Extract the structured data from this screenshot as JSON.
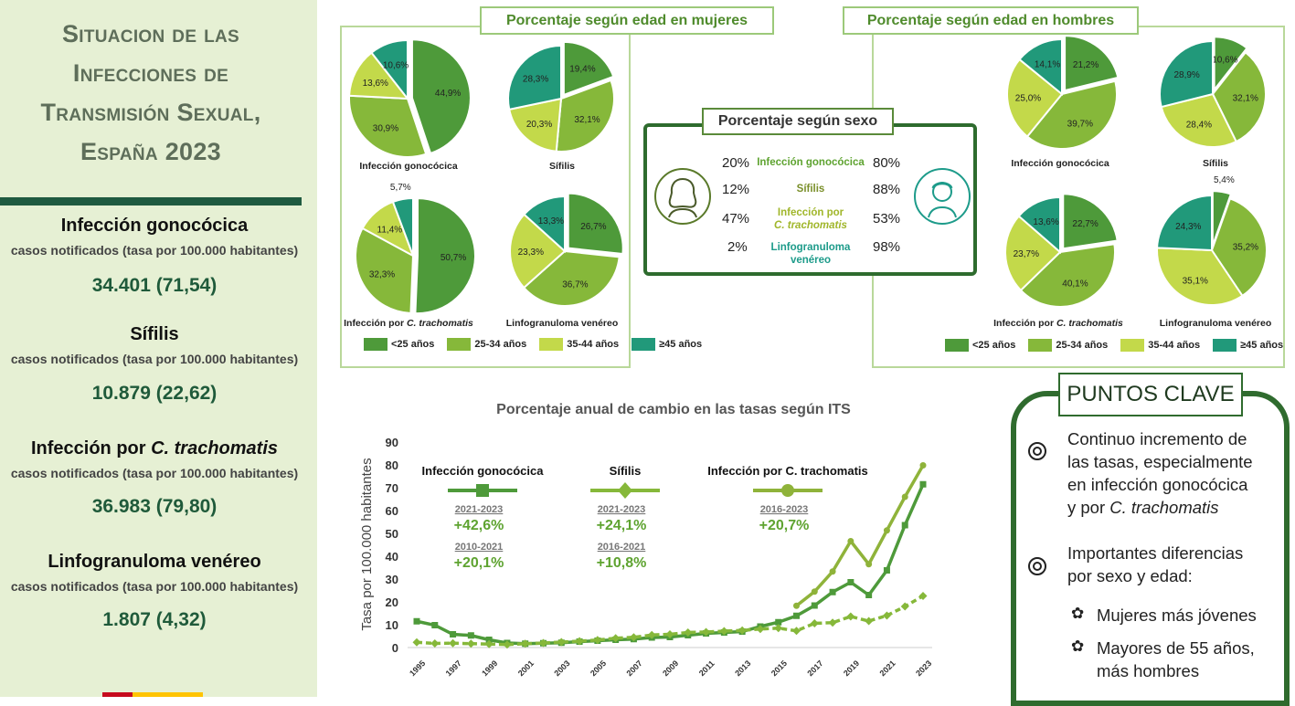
{
  "sidebar": {
    "title_lines": [
      "Situacion de las",
      "Infecciones de",
      "Transmisión Sexual,",
      "España 2023"
    ],
    "subtitle": "casos notificados (tasa por 100.000 habitantes)",
    "stats": [
      {
        "name": "Infección gonocócica",
        "value": "34.401 (71,54)"
      },
      {
        "name": "Sífilis",
        "value": "10.879 (22,62)"
      },
      {
        "name_prefix": "Infección por ",
        "name_italic": "C. trachomatis",
        "value": "36.983 (79,80)"
      },
      {
        "name": "Linfogranuloma venéreo",
        "value": "1.807 (4,32)"
      }
    ]
  },
  "age_women": {
    "title": "Porcentaje según edad en mujeres",
    "pies": [
      {
        "label": "Infección gonocócica",
        "values": [
          44.9,
          30.9,
          13.6,
          10.6
        ],
        "labels": [
          "44,9%",
          "30,9%",
          "13,6%",
          "10,6%"
        ]
      },
      {
        "label": "Sífilis",
        "values": [
          19.4,
          32.1,
          20.3,
          28.3
        ],
        "labels": [
          "19,4%",
          "32,1%",
          "20,3%",
          "28,3%"
        ]
      },
      {
        "label": "Infección por C. trachomatis",
        "values": [
          50.7,
          32.3,
          11.4,
          5.7
        ],
        "labels": [
          "50,7%",
          "32,3%",
          "11,4%",
          "5,7%"
        ]
      },
      {
        "label": "Linfogranuloma venéreo",
        "values": [
          26.7,
          36.7,
          23.3,
          13.3
        ],
        "labels": [
          "26,7%",
          "36,7%",
          "23,3%",
          "13,3%"
        ]
      }
    ]
  },
  "age_men": {
    "title": "Porcentaje según edad en hombres",
    "pies": [
      {
        "label": "Infección gonocócica",
        "values": [
          21.2,
          39.7,
          25.0,
          14.1
        ],
        "labels": [
          "21,2%",
          "39,7%",
          "25,0%",
          "14,1%"
        ]
      },
      {
        "label": "Sífilis",
        "values": [
          10.6,
          32.1,
          28.4,
          28.9
        ],
        "labels": [
          "10,6%",
          "32,1%",
          "28,4%",
          "28,9%"
        ]
      },
      {
        "label": "Infección por C. trachomatis",
        "values": [
          22.7,
          40.1,
          23.7,
          13.6
        ],
        "labels": [
          "22,7%",
          "40,1%",
          "23,7%",
          "13,6%"
        ]
      },
      {
        "label": "Linfogranuloma venéreo",
        "values": [
          5.4,
          35.2,
          35.1,
          24.3
        ],
        "labels": [
          "5,4%",
          "35,2%",
          "35,1%",
          "24,3%"
        ]
      }
    ]
  },
  "age_groups": [
    "<25 años",
    "25-34 años",
    "35-44 años",
    "≥45 años"
  ],
  "age_colors": [
    "#4e9a3a",
    "#86b83a",
    "#c3d94a",
    "#21997a"
  ],
  "sex": {
    "title": "Porcentaje según sexo",
    "rows": [
      {
        "women": "20%",
        "infection": "Infección gonocócica",
        "men": "80%",
        "color": "#5ea330"
      },
      {
        "women": "12%",
        "infection": "Sífilis",
        "men": "88%",
        "color": "#7a8f2a"
      },
      {
        "women": "47%",
        "infection_line1": "Infección por",
        "infection_line2": "C. trachomatis",
        "men": "53%",
        "color": "#a0b62a"
      },
      {
        "women": "2%",
        "infection_line1": "Linfogranuloma",
        "infection_line2": "venéreo",
        "men": "98%",
        "color": "#1d9b8a"
      }
    ]
  },
  "chart_data": {
    "type": "line",
    "title": "Porcentaje anual de cambio en las tasas según ITS",
    "ylabel": "Tasa por 100.000 habitantes",
    "ylim": [
      0,
      90
    ],
    "yticks": [
      0,
      10,
      20,
      30,
      40,
      50,
      60,
      70,
      80,
      90
    ],
    "xtick_labels": [
      "1995",
      "1997",
      "1999",
      "2001",
      "2003",
      "2005",
      "2007",
      "2009",
      "2011",
      "2013",
      "2015",
      "2017",
      "2019",
      "2021",
      "2023"
    ],
    "x": [
      1995,
      1996,
      1997,
      1998,
      1999,
      2000,
      2001,
      2002,
      2003,
      2004,
      2005,
      2006,
      2007,
      2008,
      2009,
      2010,
      2011,
      2012,
      2013,
      2014,
      2015,
      2016,
      2017,
      2018,
      2019,
      2020,
      2021,
      2022,
      2023
    ],
    "series": [
      {
        "name": "Infección gonocócica",
        "color": "#4e9a3a",
        "marker": "square",
        "values": [
          11.5,
          9.8,
          5.8,
          5.3,
          3.4,
          2.0,
          1.7,
          1.9,
          2.1,
          2.6,
          3.0,
          3.4,
          3.7,
          4.4,
          4.6,
          5.4,
          6.2,
          6.6,
          7.0,
          9.2,
          11.1,
          13.9,
          18.4,
          24.3,
          28.6,
          23.0,
          33.8,
          53.6,
          71.5
        ]
      },
      {
        "name": "Sífilis",
        "color": "#86b83a",
        "marker": "diamond",
        "values": [
          2.3,
          1.8,
          1.9,
          1.7,
          1.5,
          1.3,
          1.7,
          2.0,
          2.4,
          2.8,
          3.3,
          4.1,
          4.5,
          5.5,
          5.8,
          6.6,
          6.8,
          7.2,
          7.5,
          8.1,
          8.5,
          7.3,
          10.6,
          10.9,
          13.6,
          11.6,
          14.0,
          18.0,
          22.6
        ]
      },
      {
        "name": "Infección por C. trachomatis",
        "color": "#8fb33a",
        "marker": "circle",
        "values": [
          null,
          null,
          null,
          null,
          null,
          null,
          null,
          null,
          null,
          null,
          null,
          null,
          null,
          null,
          null,
          null,
          null,
          null,
          null,
          null,
          null,
          18.3,
          24.5,
          33.3,
          46.6,
          36.5,
          51.3,
          66.0,
          79.8
        ]
      }
    ],
    "annotations": [
      {
        "series": "Infección gonocócica",
        "periods": [
          {
            "period": "2021-2023",
            "change": "+42,6%"
          },
          {
            "period": "2010-2021",
            "change": "+20,1%"
          }
        ]
      },
      {
        "series": "Sífilis",
        "periods": [
          {
            "period": "2021-2023",
            "change": "+24,1%"
          },
          {
            "period": "2016-2021",
            "change": "+10,8%"
          }
        ]
      },
      {
        "series": "Infección por C. trachomatis",
        "periods": [
          {
            "period": "2016-2023",
            "change": "+20,7%"
          }
        ]
      }
    ]
  },
  "key_points": {
    "title": "PUNTOS CLAVE",
    "point1_lines": [
      "Continuo incremento de",
      "las tasas, especialmente",
      "en infección gonocócica"
    ],
    "point1_last_prefix": "y por ",
    "point1_last_italic": "C. trachomatis",
    "point2_lines": [
      "Importantes diferencias",
      "por sexo y edad:"
    ],
    "sub1": "Mujeres más jóvenes",
    "sub2_lines": [
      "Mayores de 55 años,",
      "más hombres"
    ]
  }
}
